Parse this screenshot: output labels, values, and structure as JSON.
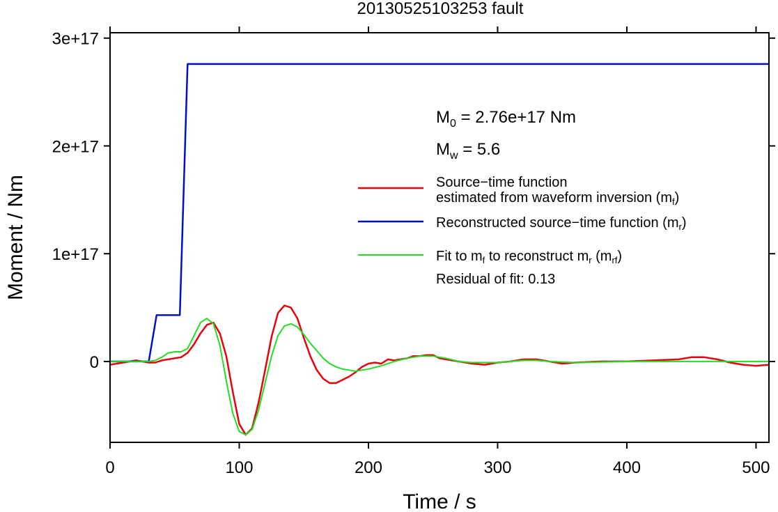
{
  "chart_data": {
    "type": "line",
    "title": "20130525103253 fault",
    "xlabel": "Time / s",
    "ylabel": "Moment / Nm",
    "xlim": [
      0,
      510
    ],
    "ylim": [
      -7.5e+16,
      3.05e+17
    ],
    "x_ticks": [
      0,
      100,
      200,
      300,
      400,
      500
    ],
    "x_tick_labels": [
      "0",
      "100",
      "200",
      "300",
      "400",
      "500"
    ],
    "y_ticks": [
      0,
      1e+17,
      2e+17,
      3e+17
    ],
    "y_tick_labels": [
      "0",
      "1e+17",
      "2e+17",
      "3e+17"
    ],
    "grid": false,
    "legend_position": "right",
    "annotations": {
      "m0_label": "M",
      "m0_sub": "0",
      "m0_value": " = 2.76e+17 Nm",
      "mw_label": "M",
      "mw_sub": "w",
      "mw_value": " = 5.6",
      "residual": "Residual of fit: 0.13"
    },
    "legend": {
      "red_line1": "Source−time function",
      "red_line2_pre": "estimated from waveform inversion (m",
      "red_line2_sub": "f",
      "red_line2_post": ")",
      "blue_pre": "Reconstructed source−time function (m",
      "blue_sub": "r",
      "blue_post": ")",
      "green_pre1": "Fit to m",
      "green_sub1": "f",
      "green_mid": " to reconstruct m",
      "green_sub2": "r",
      "green_mid2": " (m",
      "green_sub3": "rf",
      "green_post": ")"
    },
    "series": [
      {
        "color": "#e8000b",
        "x": [
          0,
          10,
          20,
          25,
          30,
          35,
          40,
          45,
          50,
          55,
          60,
          65,
          70,
          75,
          80,
          85,
          90,
          95,
          100,
          105,
          110,
          115,
          120,
          125,
          130,
          135,
          140,
          145,
          150,
          155,
          160,
          165,
          170,
          175,
          180,
          185,
          190,
          195,
          200,
          205,
          210,
          215,
          220,
          225,
          230,
          235,
          240,
          245,
          250,
          255,
          260,
          270,
          280,
          290,
          300,
          310,
          320,
          330,
          340,
          350,
          360,
          380,
          400,
          420,
          440,
          450,
          460,
          470,
          480,
          490,
          500,
          510
        ],
        "y": [
          -3000000000000000.0,
          -1000000000000000.0,
          1000000000000000.0,
          0,
          -1000000000000000.0,
          -1000000000000000.0,
          1000000000000000.0,
          2000000000000000.0,
          3000000000000000.0,
          4000000000000000.0,
          8000000000000000.0,
          1.6e+16,
          2.6e+16,
          3.4e+16,
          3.6e+16,
          2.6e+16,
          5000000000000000.0,
          -2.8e+16,
          -5.8e+16,
          -6.8e+16,
          -6.2e+16,
          -3.8e+16,
          -8000000000000000.0,
          2.3e+16,
          4.5e+16,
          5.2e+16,
          5e+16,
          4e+16,
          2.2e+16,
          5000000000000000.0,
          -8000000000000000.0,
          -1.6e+16,
          -2e+16,
          -2e+16,
          -1.7e+16,
          -1.4e+16,
          -1e+16,
          -5000000000000000.0,
          -2000000000000000.0,
          -1000000000000000.0,
          -2000000000000000.0,
          2000000000000000.0,
          1000000000000000.0,
          2000000000000000.0,
          3000000000000000.0,
          5000000000000000.0,
          5000000000000000.0,
          6000000000000000.0,
          6000000000000000.0,
          3000000000000000.0,
          2000000000000000.0,
          0,
          -2000000000000000.0,
          -3000000000000000.0,
          -1000000000000000.0,
          0,
          2000000000000000.0,
          2000000000000000.0,
          0,
          -2000000000000000.0,
          -1000000000000000.0,
          0,
          0,
          1000000000000000.0,
          2000000000000000.0,
          4000000000000000.0,
          4000000000000000.0,
          2000000000000000.0,
          -1000000000000000.0,
          -3000000000000000.0,
          -4000000000000000.0,
          -3000000000000000.0
        ]
      },
      {
        "color": "#0010c8",
        "x": [
          0,
          30,
          36,
          54,
          60,
          510
        ],
        "y": [
          0,
          0,
          4.3e+16,
          4.3e+16,
          2.76e+17,
          2.76e+17
        ]
      },
      {
        "color": "#22dd22",
        "x": [
          0,
          20,
          30,
          35,
          40,
          45,
          50,
          55,
          60,
          65,
          70,
          75,
          80,
          85,
          90,
          95,
          100,
          105,
          110,
          115,
          120,
          125,
          130,
          135,
          140,
          145,
          150,
          155,
          160,
          165,
          170,
          175,
          180,
          185,
          190,
          200,
          210,
          220,
          230,
          240,
          250,
          260,
          270,
          280,
          300,
          320,
          330,
          340,
          360,
          400,
          450,
          500,
          510
        ],
        "y": [
          0,
          0,
          0,
          1000000000000000.0,
          4000000000000000.0,
          8000000000000000.0,
          9000000000000000.0,
          9000000000000000.0,
          1.2e+16,
          2.4e+16,
          3.6e+16,
          4e+16,
          3.5e+16,
          1.5e+16,
          -1.8e+16,
          -4.8e+16,
          -6.5e+16,
          -6.8e+16,
          -6.3e+16,
          -4.5e+16,
          -2e+16,
          5000000000000000.0,
          2.4e+16,
          3.3e+16,
          3.5e+16,
          3.2e+16,
          2.5e+16,
          1.7e+16,
          1e+16,
          3000000000000000.0,
          -2000000000000000.0,
          -5000000000000000.0,
          -7000000000000000.0,
          -8000000000000000.0,
          -9000000000000000.0,
          -7000000000000000.0,
          -4000000000000000.0,
          0,
          3000000000000000.0,
          5000000000000000.0,
          5000000000000000.0,
          3000000000000000.0,
          0,
          -1000000000000000.0,
          -1000000000000000.0,
          1000000000000000.0,
          1000000000000000.0,
          0,
          -1000000000000000.0,
          0,
          0,
          0,
          0
        ]
      }
    ]
  }
}
